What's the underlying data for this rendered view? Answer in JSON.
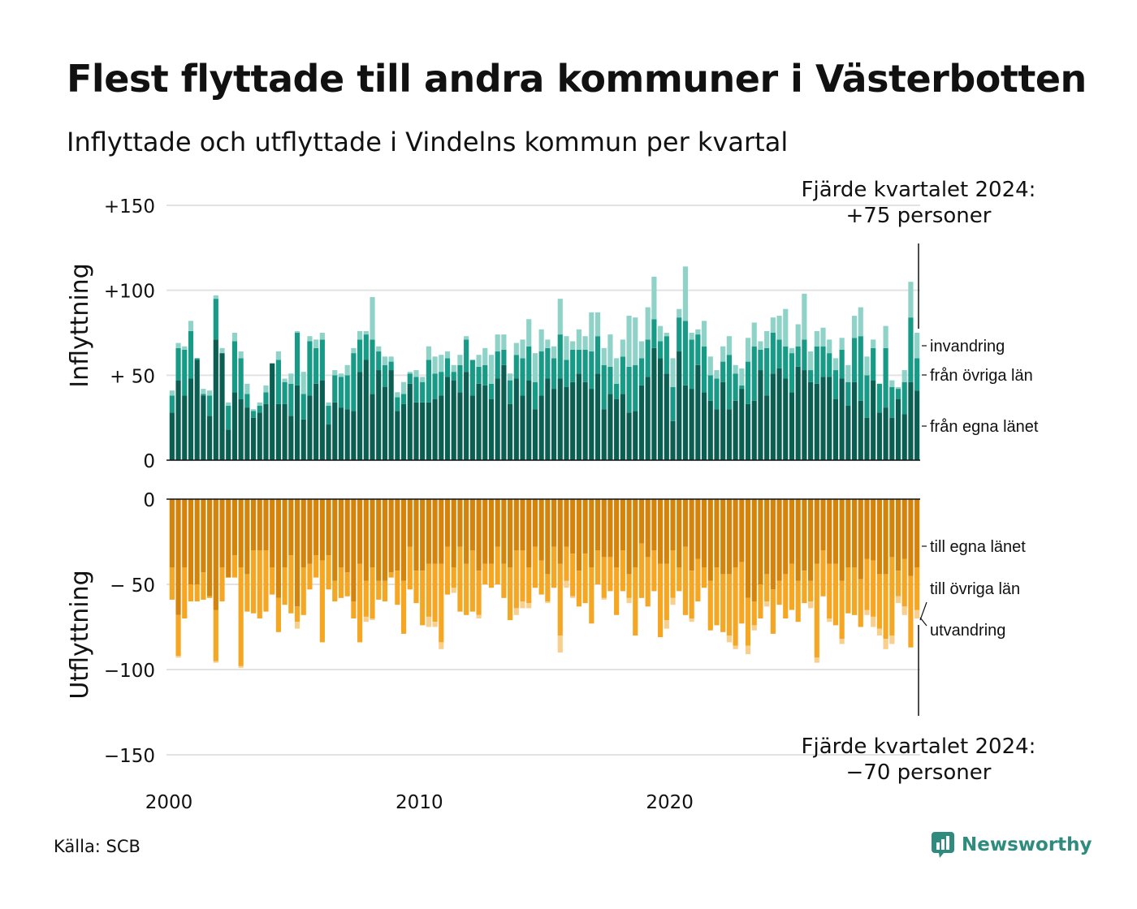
{
  "title": "Flest flyttade till andra kommuner i Västerbotten",
  "subtitle": "Inflyttade och utflyttade i Vindelns kommun per kvartal",
  "source": "Källa: SCB",
  "brand": "Newsworthy",
  "colors": {
    "in_own": "#0b5e52",
    "in_other": "#179a86",
    "in_imm": "#8fd3c8",
    "out_own": "#d4830b",
    "out_other": "#f5a623",
    "out_emig": "#f8cf8c",
    "grid": "#e2e2e2",
    "brand": "#2e8b7e"
  },
  "chart_data": {
    "type": "bar",
    "stacked": true,
    "grid": true,
    "x_ticks": [
      "2000",
      "2010",
      "2020"
    ],
    "top_panel": {
      "ylabel": "Inflyttning",
      "ylim": [
        0,
        150
      ],
      "yticks": [
        0,
        50,
        100,
        150
      ],
      "ytick_labels": [
        "0",
        "+ 50",
        "+100",
        "+150"
      ],
      "annotation": [
        "Fjärde kvartalet 2024:",
        "+75 personer"
      ],
      "series": [
        {
          "name": "från egna länet",
          "values": [
            28,
            47,
            38,
            48,
            59,
            38,
            26,
            71,
            63,
            18,
            40,
            36,
            31,
            25,
            28,
            33,
            57,
            33,
            33,
            26,
            44,
            24,
            38,
            45,
            47,
            21,
            34,
            31,
            30,
            29,
            52,
            59,
            39,
            53,
            43,
            53,
            29,
            33,
            45,
            34,
            34,
            34,
            36,
            38,
            49,
            47,
            40,
            52,
            38,
            45,
            44,
            36,
            48,
            56,
            33,
            48,
            38,
            47,
            30,
            38,
            48,
            42,
            48,
            43,
            46,
            51,
            46,
            42,
            51,
            30,
            39,
            36,
            39,
            28,
            29,
            44,
            49,
            66,
            60,
            51,
            23,
            64,
            44,
            42,
            56,
            40,
            35,
            30,
            46,
            30,
            35,
            42,
            33,
            35,
            53,
            38,
            51,
            54,
            48,
            40,
            55,
            53,
            46,
            45,
            49,
            49,
            36,
            48,
            32,
            46,
            35,
            25,
            47,
            28,
            31,
            25,
            36,
            27,
            46,
            41
          ]
        },
        {
          "name": "från övriga län",
          "values": [
            10,
            19,
            27,
            28,
            1,
            1,
            12,
            24,
            0,
            14,
            30,
            24,
            8,
            4,
            4,
            7,
            0,
            26,
            13,
            19,
            31,
            15,
            32,
            21,
            24,
            11,
            16,
            18,
            20,
            34,
            19,
            15,
            32,
            11,
            13,
            5,
            8,
            6,
            6,
            15,
            12,
            25,
            15,
            14,
            11,
            5,
            16,
            19,
            21,
            10,
            12,
            9,
            16,
            9,
            14,
            14,
            22,
            20,
            16,
            26,
            18,
            18,
            26,
            16,
            19,
            14,
            19,
            22,
            22,
            26,
            16,
            9,
            22,
            27,
            27,
            16,
            22,
            17,
            10,
            22,
            20,
            20,
            38,
            29,
            18,
            27,
            15,
            18,
            12,
            32,
            16,
            2,
            25,
            32,
            12,
            28,
            24,
            17,
            19,
            23,
            12,
            18,
            7,
            22,
            18,
            14,
            17,
            17,
            14,
            26,
            38,
            25,
            19,
            17,
            35,
            18,
            6,
            19,
            38,
            19
          ]
        },
        {
          "name": "invandring",
          "values": [
            3,
            3,
            2,
            6,
            0,
            3,
            3,
            2,
            3,
            2,
            5,
            4,
            6,
            1,
            2,
            4,
            0,
            5,
            2,
            6,
            1,
            13,
            3,
            5,
            4,
            2,
            3,
            2,
            6,
            3,
            5,
            2,
            25,
            3,
            5,
            3,
            3,
            7,
            1,
            4,
            3,
            8,
            10,
            10,
            4,
            4,
            6,
            2,
            0,
            7,
            10,
            17,
            10,
            9,
            4,
            7,
            11,
            16,
            17,
            13,
            5,
            7,
            21,
            14,
            5,
            12,
            8,
            23,
            14,
            10,
            19,
            15,
            10,
            30,
            28,
            10,
            19,
            25,
            9,
            2,
            17,
            5,
            32,
            4,
            3,
            15,
            11,
            5,
            9,
            11,
            5,
            10,
            14,
            14,
            5,
            10,
            9,
            14,
            22,
            3,
            13,
            27,
            11,
            9,
            11,
            8,
            7,
            7,
            10,
            13,
            17,
            11,
            5,
            0,
            13,
            4,
            1,
            7,
            21,
            15
          ]
        }
      ]
    },
    "bottom_panel": {
      "ylabel": "Utflyttning",
      "ylim": [
        -150,
        0
      ],
      "yticks": [
        0,
        -50,
        -100,
        -150
      ],
      "ytick_labels": [
        "0",
        "− 50",
        "−100",
        "−150"
      ],
      "annotation": [
        "Fjärde kvartalet 2024:",
        "−70 personer"
      ],
      "series": [
        {
          "name": "till egna länet",
          "values": [
            -40,
            -68,
            -40,
            -50,
            -50,
            -43,
            -57,
            -65,
            -40,
            -46,
            -33,
            -40,
            -44,
            -30,
            -30,
            -30,
            -40,
            -58,
            -40,
            -33,
            -63,
            -40,
            -38,
            -33,
            -36,
            -33,
            -48,
            -40,
            -43,
            -60,
            -38,
            -48,
            -40,
            -48,
            -48,
            -43,
            -42,
            -48,
            -28,
            -42,
            -42,
            -38,
            -38,
            -38,
            -28,
            -40,
            -28,
            -38,
            -30,
            -42,
            -38,
            -38,
            -28,
            -38,
            -40,
            -30,
            -30,
            -40,
            -28,
            -36,
            -44,
            -28,
            -38,
            -28,
            -32,
            -42,
            -32,
            -40,
            -30,
            -34,
            -34,
            -40,
            -30,
            -44,
            -40,
            -26,
            -34,
            -30,
            -38,
            -38,
            -30,
            -40,
            -28,
            -42,
            -35,
            -40,
            -48,
            -40,
            -44,
            -44,
            -40,
            -37,
            -58,
            -60,
            -50,
            -44,
            -53,
            -48,
            -44,
            -38,
            -48,
            -42,
            -48,
            -38,
            -30,
            -38,
            -38,
            -48,
            -40,
            -40,
            -47,
            -35,
            -36,
            -44,
            -44,
            -34,
            -42,
            -35,
            -45,
            -40
          ]
        },
        {
          "name": "till övriga län",
          "values": [
            -19,
            -24,
            -30,
            -10,
            -10,
            -16,
            -1,
            -30,
            -20,
            0,
            -13,
            -58,
            -22,
            -37,
            -40,
            -36,
            -16,
            -20,
            -22,
            -34,
            -9,
            -28,
            -15,
            -13,
            -48,
            -20,
            -12,
            -18,
            -14,
            -10,
            -46,
            -21,
            -30,
            -11,
            -12,
            -3,
            -20,
            -31,
            -25,
            -19,
            -32,
            -31,
            -34,
            -46,
            -28,
            -12,
            -38,
            -30,
            -36,
            -26,
            -12,
            -14,
            -22,
            -20,
            -31,
            -34,
            -30,
            -21,
            -24,
            -20,
            -16,
            -24,
            -42,
            -20,
            -25,
            -21,
            -29,
            -33,
            -20,
            -24,
            -20,
            -28,
            -24,
            -14,
            -40,
            -32,
            -29,
            -24,
            -43,
            -33,
            -28,
            -14,
            -40,
            -28,
            -25,
            -12,
            -29,
            -34,
            -34,
            -36,
            -46,
            -36,
            -28,
            -14,
            -20,
            -16,
            -26,
            -14,
            -26,
            -27,
            -24,
            -19,
            -12,
            -55,
            -27,
            -32,
            -36,
            -34,
            -27,
            -28,
            -28,
            -30,
            -33,
            -32,
            -38,
            -46,
            -15,
            -28,
            -42,
            -25
          ]
        },
        {
          "name": "utvandring",
          "values": [
            0,
            -1,
            0,
            0,
            0,
            0,
            0,
            -1,
            0,
            0,
            0,
            -1,
            0,
            0,
            0,
            0,
            0,
            0,
            0,
            0,
            -4,
            0,
            0,
            0,
            0,
            0,
            0,
            0,
            0,
            0,
            0,
            -3,
            -1,
            0,
            0,
            0,
            0,
            0,
            0,
            0,
            0,
            -6,
            -3,
            -4,
            0,
            -3,
            0,
            0,
            0,
            -2,
            0,
            0,
            0,
            0,
            0,
            -4,
            -4,
            -3,
            0,
            0,
            -1,
            0,
            -10,
            -4,
            -1,
            0,
            0,
            0,
            0,
            -1,
            0,
            0,
            0,
            -3,
            0,
            0,
            0,
            0,
            0,
            -5,
            -4,
            0,
            0,
            -2,
            0,
            0,
            0,
            0,
            0,
            -4,
            -2,
            0,
            -5,
            -3,
            0,
            -3,
            0,
            0,
            0,
            0,
            0,
            0,
            -4,
            -3,
            0,
            -2,
            0,
            -3,
            0,
            0,
            0,
            -3,
            -6,
            -4,
            -6,
            -5,
            -4,
            -5,
            0,
            -5
          ]
        }
      ]
    }
  },
  "legend_in": [
    "invandring",
    "från övriga län",
    "från egna länet"
  ],
  "legend_out": [
    "till egna länet",
    "till övriga län",
    "utvandring"
  ]
}
